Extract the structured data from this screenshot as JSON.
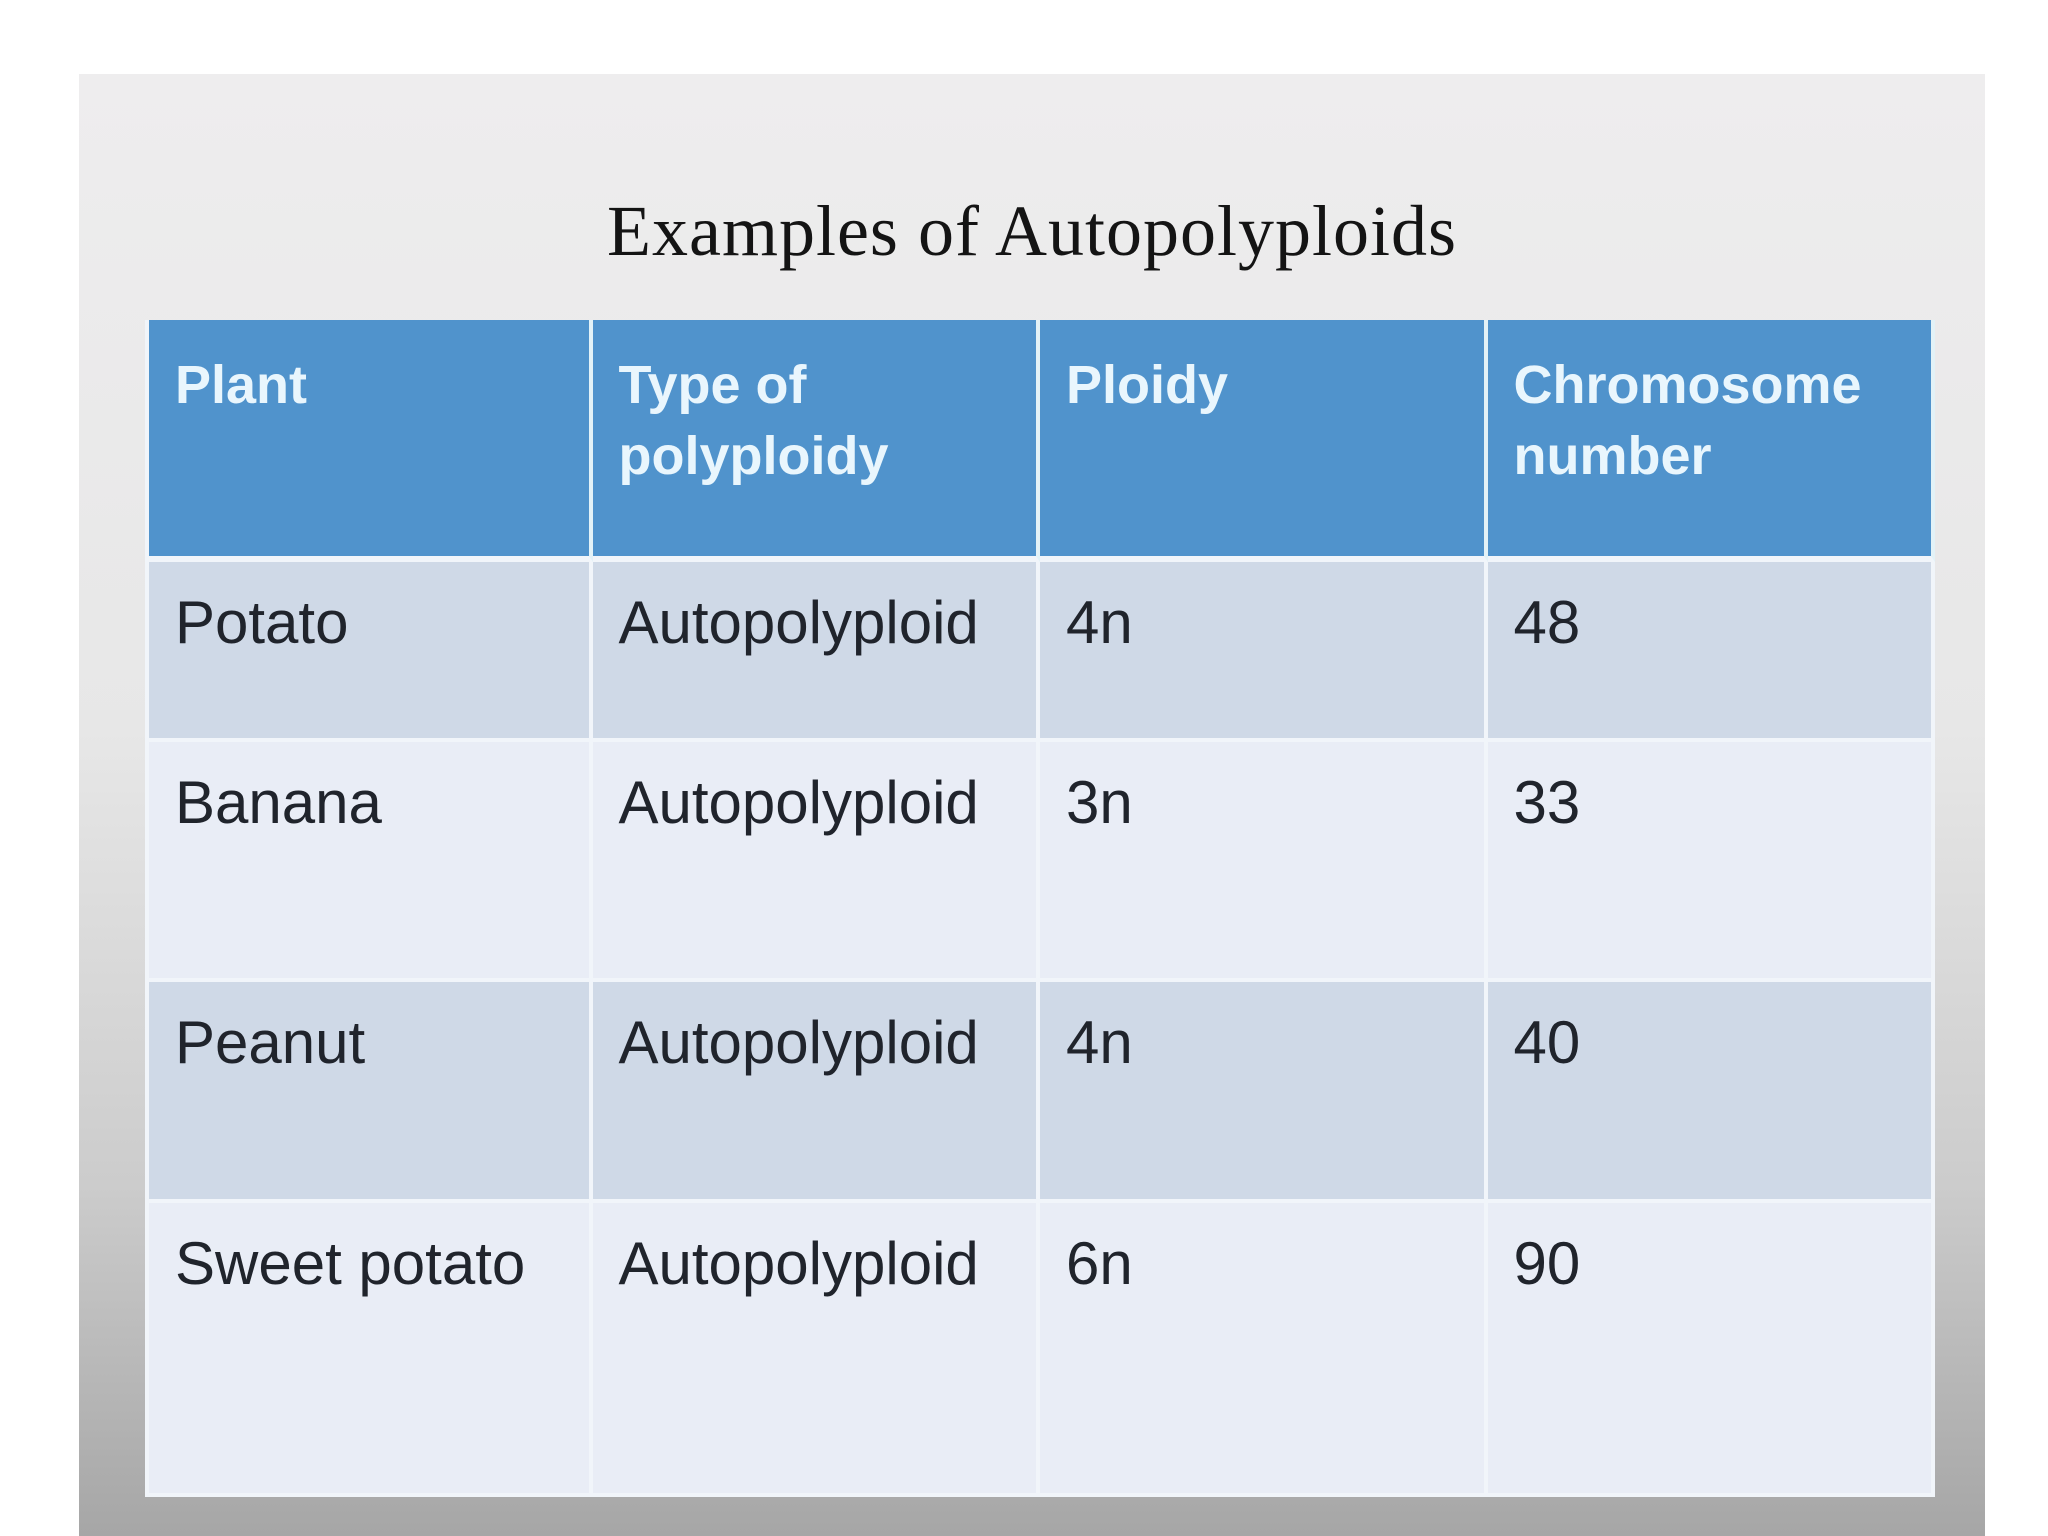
{
  "slide": {
    "title": "Examples of Autopolyploids",
    "table": {
      "columns": [
        "Plant",
        "Type of polyploidy",
        "Ploidy",
        "Chromosome number"
      ],
      "rows": [
        [
          "Potato",
          "Autopolyploid",
          "4n",
          "48"
        ],
        [
          "Banana",
          "Autopolyploid",
          "3n",
          "33"
        ],
        [
          "Peanut",
          "Autopolyploid",
          "4n",
          "40"
        ],
        [
          "Sweet potato",
          "Autopolyploid",
          "6n",
          "90"
        ]
      ]
    },
    "colors": {
      "header_bg": "#5093cc",
      "header_text": "#e9f6fd",
      "row_odd_bg": "#cfd9e7",
      "row_even_bg": "#e9edf6",
      "body_text": "#20242c",
      "border": "#f1f5fa",
      "slide_bg_top": "#eeedee",
      "slide_bg_bottom": "#a6a6a6"
    }
  },
  "chart_data": {
    "type": "table",
    "title": "Examples of Autopolyploids",
    "columns": [
      "Plant",
      "Type of polyploidy",
      "Ploidy",
      "Chromosome number"
    ],
    "rows": [
      {
        "plant": "Potato",
        "type_of_polyploidy": "Autopolyploid",
        "ploidy": "4n",
        "chromosome_number": 48
      },
      {
        "plant": "Banana",
        "type_of_polyploidy": "Autopolyploid",
        "ploidy": "3n",
        "chromosome_number": 33
      },
      {
        "plant": "Peanut",
        "type_of_polyploidy": "Autopolyploid",
        "ploidy": "4n",
        "chromosome_number": 40
      },
      {
        "plant": "Sweet potato",
        "type_of_polyploidy": "Autopolyploid",
        "ploidy": "6n",
        "chromosome_number": 90
      }
    ]
  }
}
